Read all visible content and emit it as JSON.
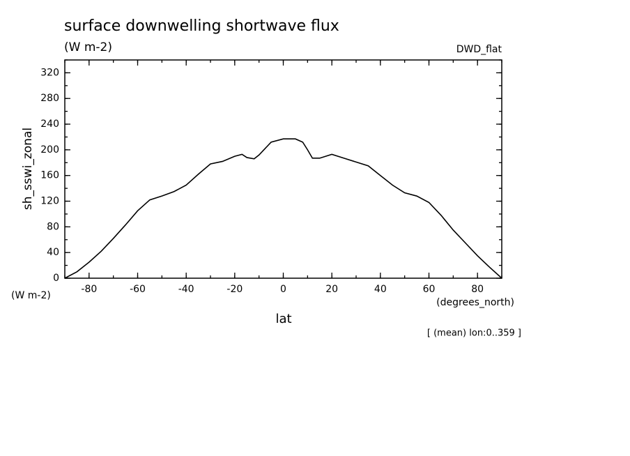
{
  "chart_data": {
    "type": "line",
    "title": "surface downwelling shortwave flux",
    "units": "(W m-2)",
    "source": "DWD_flat",
    "y_label": "sh_sswi_zonal",
    "y_units": "(W m-2)",
    "x_units": "(degrees_north)",
    "x_label": "lat",
    "note": "[ (mean) lon:0..359 ]",
    "x": [
      -90,
      -85,
      -80,
      -75,
      -70,
      -65,
      -60,
      -55,
      -50,
      -45,
      -40,
      -35,
      -30,
      -25,
      -20,
      -17,
      -15,
      -12,
      -10,
      -5,
      0,
      5,
      8,
      10,
      12,
      15,
      20,
      25,
      30,
      35,
      40,
      45,
      50,
      55,
      60,
      65,
      70,
      75,
      80,
      85,
      90
    ],
    "series": [
      {
        "name": "sh_sswi_zonal",
        "color": "#000000",
        "values": [
          0,
          10,
          25,
          42,
          62,
          83,
          105,
          122,
          128,
          135,
          145,
          162,
          178,
          182,
          190,
          193,
          188,
          186,
          192,
          212,
          217,
          217,
          212,
          200,
          187,
          187,
          193,
          187,
          181,
          175,
          160,
          145,
          133,
          128,
          118,
          98,
          75,
          55,
          35,
          17,
          0
        ]
      }
    ],
    "xlim": [
      -90,
      90
    ],
    "xticks": [
      -80,
      -60,
      -40,
      -20,
      0,
      20,
      40,
      60,
      80
    ],
    "ylim": [
      0,
      340
    ],
    "yticks": [
      0,
      40,
      80,
      120,
      160,
      200,
      240,
      280,
      320
    ],
    "minor_ticks": {
      "x": 10,
      "y": 20
    }
  }
}
